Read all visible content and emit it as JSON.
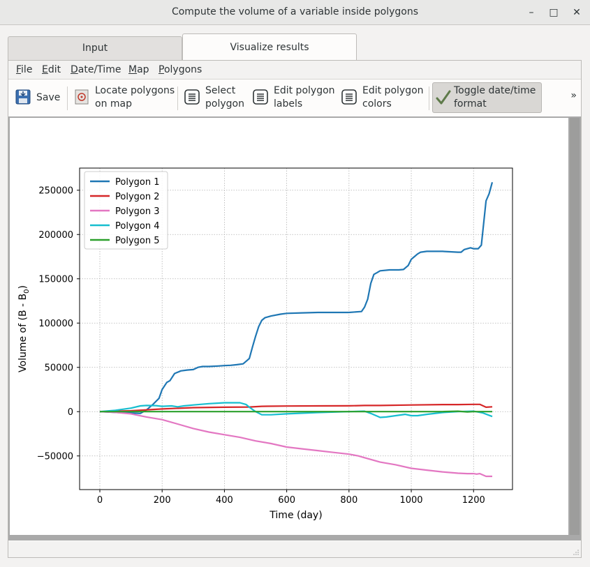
{
  "window": {
    "title": "Compute the volume of a variable inside polygons",
    "minimize": "–",
    "maximize": "□",
    "close": "✕"
  },
  "tabs": [
    {
      "label": "Input",
      "active": false
    },
    {
      "label": "Visualize results",
      "active": true
    }
  ],
  "menu": [
    {
      "label": "File",
      "mnemonic": "F",
      "rest": "ile"
    },
    {
      "label": "Edit",
      "mnemonic": "E",
      "rest": "dit"
    },
    {
      "label": "Date/Time",
      "mnemonic": "D",
      "rest": "ate/Time"
    },
    {
      "label": "Map",
      "mnemonic": "M",
      "rest": "ap"
    },
    {
      "label": "Polygons",
      "mnemonic": "P",
      "rest": "olygons"
    }
  ],
  "toolbar": {
    "save": "Save",
    "locate_l1": "Locate polygons",
    "locate_l2": "on map",
    "select_l1": "Select",
    "select_l2": "polygon",
    "labels_l1": "Edit polygon",
    "labels_l2": "labels",
    "colors_l1": "Edit polygon",
    "colors_l2": "colors",
    "toggle_l1": "Toggle date/time",
    "toggle_l2": "format",
    "overflow": "»"
  },
  "chart_data": {
    "type": "line",
    "xlabel": "Time (day)",
    "ylabel_main": "Volume of (B - B",
    "ylabel_sub": "0",
    "ylabel_end": ")",
    "xlim": [
      -65,
      1325
    ],
    "ylim": [
      -88000,
      275000
    ],
    "xticks": [
      0,
      200,
      400,
      600,
      800,
      1000,
      1200
    ],
    "yticks": [
      -50000,
      0,
      50000,
      100000,
      150000,
      200000,
      250000
    ],
    "ytick_labels": [
      "−50000",
      "0",
      "50000",
      "100000",
      "150000",
      "200000",
      "250000"
    ],
    "grid": true,
    "legend_position": "upper-left",
    "series": [
      {
        "name": "Polygon 1",
        "color": "#1f77b4",
        "x": [
          0,
          60,
          100,
          130,
          150,
          170,
          190,
          200,
          215,
          225,
          240,
          260,
          280,
          300,
          315,
          330,
          350,
          380,
          400,
          420,
          440,
          460,
          470,
          480,
          490,
          500,
          510,
          520,
          530,
          550,
          580,
          600,
          650,
          700,
          750,
          800,
          840,
          850,
          860,
          870,
          880,
          890,
          900,
          930,
          960,
          975,
          990,
          1000,
          1010,
          1020,
          1030,
          1050,
          1100,
          1150,
          1160,
          1170,
          1190,
          1200,
          1215,
          1225,
          1240,
          1250,
          1260
        ],
        "y": [
          0,
          -1000,
          -1500,
          -2000,
          2000,
          8000,
          15000,
          25000,
          33000,
          35000,
          43000,
          46000,
          47000,
          47500,
          50000,
          51000,
          51000,
          51500,
          52000,
          52300,
          53000,
          54000,
          57000,
          60000,
          73000,
          85000,
          96000,
          103000,
          106000,
          108000,
          110000,
          111000,
          111500,
          112000,
          112000,
          112000,
          113000,
          118000,
          127000,
          145000,
          155000,
          157000,
          159000,
          160000,
          160000,
          160500,
          165000,
          172000,
          175000,
          178000,
          180000,
          181000,
          181000,
          180000,
          180000,
          183000,
          185000,
          184000,
          184000,
          188000,
          238000,
          246000,
          259000
        ]
      },
      {
        "name": "Polygon 2",
        "color": "#d62728",
        "x": [
          0,
          100,
          200,
          300,
          400,
          480,
          520,
          600,
          700,
          800,
          850,
          900,
          1000,
          1100,
          1150,
          1200,
          1220,
          1240,
          1260
        ],
        "y": [
          0,
          1000,
          3000,
          4500,
          5000,
          5200,
          6000,
          6300,
          6500,
          6600,
          7000,
          7000,
          7500,
          8000,
          8000,
          8200,
          8200,
          5000,
          5500
        ]
      },
      {
        "name": "Polygon 3",
        "color": "#e377c2",
        "x": [
          0,
          50,
          100,
          150,
          200,
          250,
          300,
          350,
          400,
          450,
          500,
          550,
          600,
          650,
          700,
          750,
          800,
          830,
          850,
          870,
          880,
          900,
          950,
          1000,
          1050,
          1100,
          1150,
          1180,
          1200,
          1210,
          1220,
          1240,
          1260
        ],
        "y": [
          0,
          -800,
          -2500,
          -6000,
          -9000,
          -14000,
          -19000,
          -23000,
          -26000,
          -29000,
          -33000,
          -36000,
          -40000,
          -42000,
          -44000,
          -46000,
          -48000,
          -50000,
          -52000,
          -54000,
          -55000,
          -57000,
          -60000,
          -64000,
          -66000,
          -68000,
          -69500,
          -70000,
          -70000,
          -70500,
          -70000,
          -73000,
          -73000
        ]
      },
      {
        "name": "Polygon 4",
        "color": "#17becf",
        "x": [
          0,
          50,
          100,
          130,
          150,
          180,
          200,
          230,
          250,
          270,
          300,
          350,
          400,
          450,
          470,
          480,
          500,
          520,
          550,
          600,
          700,
          800,
          850,
          870,
          900,
          920,
          950,
          980,
          1000,
          1020,
          1050,
          1100,
          1150,
          1200,
          1230,
          1260
        ],
        "y": [
          0,
          1500,
          4000,
          6500,
          7000,
          6800,
          6000,
          6500,
          5500,
          6500,
          7500,
          9000,
          10000,
          10000,
          8000,
          5000,
          0,
          -3500,
          -3500,
          -2500,
          -1000,
          0,
          500,
          -2000,
          -6500,
          -6000,
          -4500,
          -3000,
          -4500,
          -4500,
          -3000,
          -1000,
          0,
          500,
          -1500,
          -5500
        ]
      },
      {
        "name": "Polygon 5",
        "color": "#2ca02c",
        "x": [
          0,
          300,
          600,
          900,
          1100,
          1150,
          1180,
          1200,
          1260
        ],
        "y": [
          0,
          0,
          0,
          0,
          0,
          500,
          -300,
          0,
          0
        ]
      }
    ]
  }
}
